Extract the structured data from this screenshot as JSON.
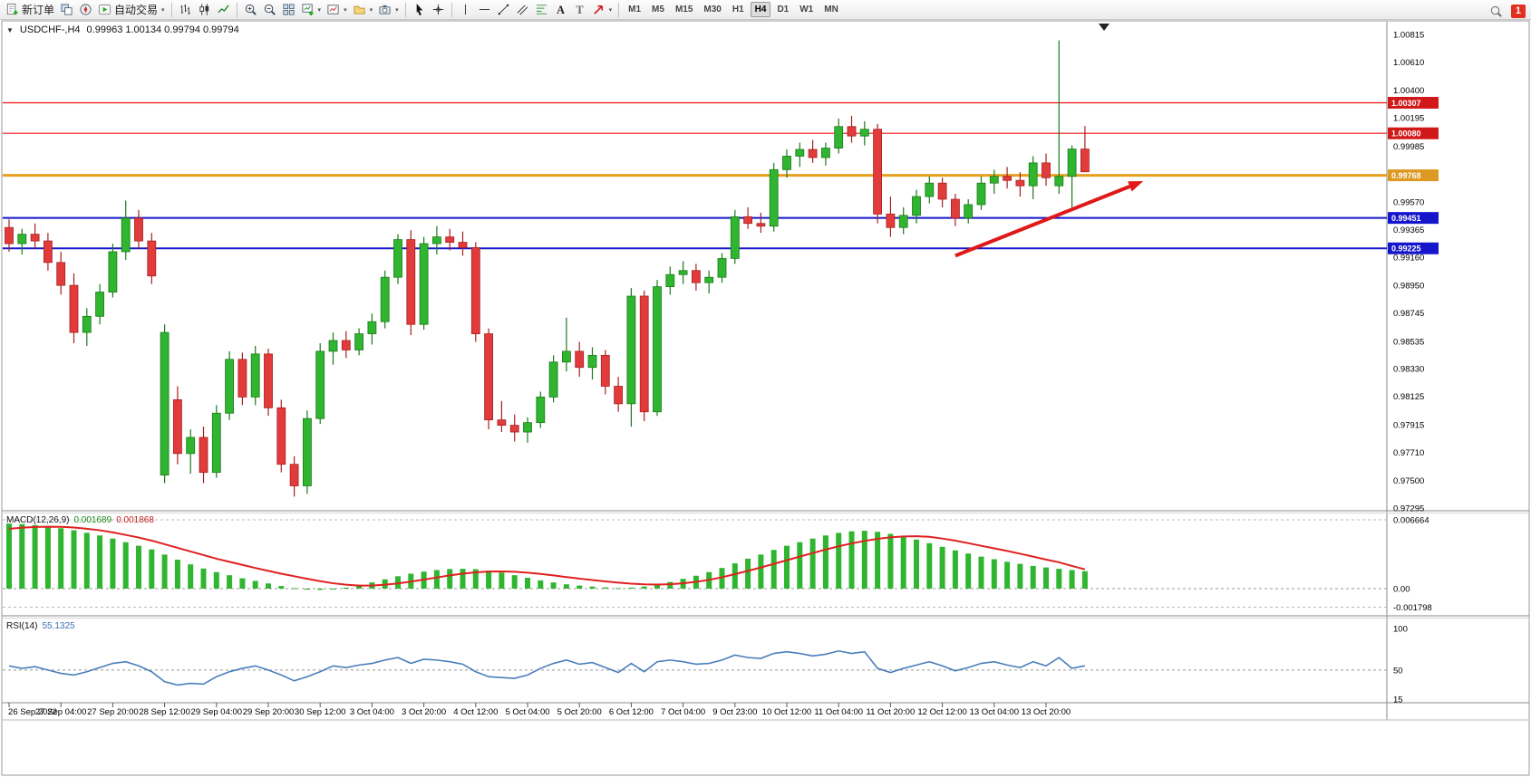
{
  "toolbar": {
    "new_order_label": "新订单",
    "autotrade_label": "自动交易",
    "notification_count": "1",
    "timeframes": [
      "M1",
      "M5",
      "M15",
      "M30",
      "H1",
      "H4",
      "D1",
      "W1",
      "MN"
    ],
    "active_timeframe": "H4",
    "items": [
      {
        "type": "button",
        "name": "new-order-button",
        "icon": "new-order-icon",
        "label_key": "new_order_label"
      },
      {
        "type": "button",
        "name": "data-window-button",
        "icon": "data-window-icon"
      },
      {
        "type": "button",
        "name": "navigator-button",
        "icon": "navigator-icon"
      },
      {
        "type": "button",
        "name": "autotrade-button",
        "icon": "autotrade-icon",
        "label_key": "autotrade_label",
        "dropdown": true
      },
      {
        "type": "sep"
      },
      {
        "type": "button",
        "name": "bar-chart-button",
        "icon": "bar-chart-icon"
      },
      {
        "type": "button",
        "name": "candlestick-button",
        "icon": "candlestick-icon"
      },
      {
        "type": "button",
        "name": "line-chart-button",
        "icon": "line-chart-icon"
      },
      {
        "type": "sep"
      },
      {
        "type": "button",
        "name": "zoom-in-button",
        "icon": "zoom-in-icon"
      },
      {
        "type": "button",
        "name": "zoom-out-button",
        "icon": "zoom-out-icon"
      },
      {
        "type": "button",
        "name": "tile-windows-button",
        "icon": "tile-windows-icon"
      },
      {
        "type": "button",
        "name": "indicators-button",
        "icon": "indicators-icon",
        "dropdown": true
      },
      {
        "type": "button",
        "name": "new-chart-button",
        "icon": "new-chart-icon",
        "dropdown": true
      },
      {
        "type": "button",
        "name": "profiles-button",
        "icon": "profiles-icon",
        "dropdown": true
      },
      {
        "type": "button",
        "name": "snapshot-button",
        "icon": "snapshot-icon",
        "dropdown": true
      },
      {
        "type": "sep"
      },
      {
        "type": "button",
        "name": "cursor-button",
        "icon": "cursor-icon"
      },
      {
        "type": "button",
        "name": "crosshair-button",
        "icon": "crosshair-icon"
      },
      {
        "type": "sep"
      },
      {
        "type": "button",
        "name": "vertical-line-button",
        "icon": "vline-icon"
      },
      {
        "type": "button",
        "name": "horizontal-line-button",
        "icon": "hline-icon"
      },
      {
        "type": "button",
        "name": "trendline-button",
        "icon": "trendline-icon"
      },
      {
        "type": "button",
        "name": "channel-button",
        "icon": "channel-icon"
      },
      {
        "type": "button",
        "name": "fibonacci-button",
        "icon": "fibonacci-icon"
      },
      {
        "type": "button",
        "name": "text-button",
        "icon": "text-icon"
      },
      {
        "type": "button",
        "name": "text-label-button",
        "icon": "textlabel-icon"
      },
      {
        "type": "button",
        "name": "arrows-button",
        "icon": "arrows-icon",
        "dropdown": true
      },
      {
        "type": "sep"
      }
    ]
  },
  "chart_header": {
    "symbol_period": "USDCHF-,H4",
    "ohlc_text": "0.99963 1.00134 0.99794 0.99794"
  },
  "macd_header": {
    "title": "MACD(12,26,9)",
    "value1": "0.001689",
    "value2": "0.001868"
  },
  "rsi_header": {
    "title": "RSI(14)",
    "value": "55.1325"
  },
  "chart_data": {
    "type": "candlestick",
    "symbol": "USDCHF",
    "timeframe": "H4",
    "price_range": {
      "max": 1.00815,
      "min": 0.97295
    },
    "price_axis_labels": [
      "1.00815",
      "1.00610",
      "1.00400",
      "1.00195",
      "0.99985",
      "0.99570",
      "0.99365",
      "0.99160",
      "0.98950",
      "0.98745",
      "0.98535",
      "0.98330",
      "0.98125",
      "0.97915",
      "0.97710",
      "0.97500",
      "0.97295"
    ],
    "colors": {
      "up": "#2FB52F",
      "up_border": "#1B7A1B",
      "down": "#E13B3B",
      "down_border": "#A81F1F",
      "resistance": "#EE1111",
      "support": "#1515CC",
      "key_level": "#E8A020",
      "macd_histogram": "#2FB52F",
      "macd_signal": "#E02020",
      "rsi_line": "#4A7EBB",
      "arrow": "#E01818"
    },
    "hlines": [
      {
        "name": "resistance-line-1",
        "price": 1.00307,
        "label": "1.00307",
        "color": "#EE1111",
        "badge": "#D01818",
        "width": 1.2
      },
      {
        "name": "resistance-line-2",
        "price": 1.0008,
        "label": "1.00080",
        "color": "#EE1111",
        "badge": "#D01818",
        "width": 1.2
      },
      {
        "name": "key-level-line",
        "price": 0.99768,
        "label": "0.99768",
        "color": "#E8A020",
        "badge": "#DD9922",
        "width": 3
      },
      {
        "name": "support-line-1",
        "price": 0.99451,
        "label": "0.99451",
        "color": "#1515CC",
        "badge": "#1515CC",
        "width": 2
      },
      {
        "name": "support-line-2",
        "price": 0.99225,
        "label": "0.99225",
        "color": "#1515CC",
        "badge": "#1515CC",
        "width": 2
      }
    ],
    "trend_arrow": {
      "from_bar": 73,
      "from_price": 0.9917,
      "to_bar": 87.5,
      "to_price": 0.99725,
      "color": "#E01818",
      "width": 4
    },
    "time_labels": [
      "26 Sep 2022",
      "27 Sep 04:00",
      "27 Sep 20:00",
      "28 Sep 12:00",
      "29 Sep 04:00",
      "29 Sep 20:00",
      "30 Sep 12:00",
      "3 Oct 04:00",
      "3 Oct 20:00",
      "4 Oct 12:00",
      "5 Oct 04:00",
      "5 Oct 20:00",
      "6 Oct 12:00",
      "7 Oct 04:00",
      "9 Oct 23:00",
      "10 Oct 12:00",
      "11 Oct 04:00",
      "11 Oct 20:00",
      "12 Oct 12:00",
      "13 Oct 04:00",
      "13 Oct 20:00"
    ],
    "candles_ohlc": [
      [
        0.9938,
        0.9944,
        0.992,
        0.9926
      ],
      [
        0.9926,
        0.9937,
        0.9918,
        0.9933
      ],
      [
        0.9933,
        0.9941,
        0.9922,
        0.9928
      ],
      [
        0.9928,
        0.9934,
        0.9906,
        0.9912
      ],
      [
        0.9912,
        0.992,
        0.9888,
        0.9895
      ],
      [
        0.9895,
        0.9904,
        0.9852,
        0.986
      ],
      [
        0.986,
        0.9878,
        0.985,
        0.9872
      ],
      [
        0.9872,
        0.9896,
        0.9866,
        0.989
      ],
      [
        0.989,
        0.9926,
        0.9886,
        0.992
      ],
      [
        0.992,
        0.9958,
        0.9914,
        0.9945
      ],
      [
        0.9945,
        0.9951,
        0.9922,
        0.9928
      ],
      [
        0.9928,
        0.9934,
        0.9896,
        0.9902
      ],
      [
        0.9754,
        0.9866,
        0.9748,
        0.986
      ],
      [
        0.981,
        0.982,
        0.9762,
        0.977
      ],
      [
        0.977,
        0.9788,
        0.9755,
        0.9782
      ],
      [
        0.9782,
        0.979,
        0.9748,
        0.9756
      ],
      [
        0.9756,
        0.9806,
        0.9752,
        0.98
      ],
      [
        0.98,
        0.9846,
        0.9795,
        0.984
      ],
      [
        0.984,
        0.9845,
        0.9806,
        0.9812
      ],
      [
        0.9812,
        0.985,
        0.9806,
        0.9844
      ],
      [
        0.9844,
        0.9848,
        0.9798,
        0.9804
      ],
      [
        0.9804,
        0.981,
        0.9756,
        0.9762
      ],
      [
        0.9762,
        0.9768,
        0.9738,
        0.9746
      ],
      [
        0.9746,
        0.9802,
        0.974,
        0.9796
      ],
      [
        0.9796,
        0.9852,
        0.9792,
        0.9846
      ],
      [
        0.9846,
        0.986,
        0.9836,
        0.9854
      ],
      [
        0.9854,
        0.9861,
        0.9841,
        0.9847
      ],
      [
        0.9847,
        0.9863,
        0.9843,
        0.9859
      ],
      [
        0.9859,
        0.9874,
        0.9851,
        0.9868
      ],
      [
        0.9868,
        0.9906,
        0.9863,
        0.9901
      ],
      [
        0.9901,
        0.9933,
        0.9896,
        0.9929
      ],
      [
        0.9929,
        0.9936,
        0.9858,
        0.9866
      ],
      [
        0.9866,
        0.9931,
        0.9862,
        0.9926
      ],
      [
        0.9926,
        0.9939,
        0.9918,
        0.9931
      ],
      [
        0.9931,
        0.9937,
        0.9921,
        0.9927
      ],
      [
        0.9927,
        0.9935,
        0.9917,
        0.9923
      ],
      [
        0.9923,
        0.9927,
        0.9853,
        0.9859
      ],
      [
        0.9859,
        0.9863,
        0.9788,
        0.9795
      ],
      [
        0.9795,
        0.9809,
        0.9786,
        0.9791
      ],
      [
        0.9791,
        0.9799,
        0.9779,
        0.9786
      ],
      [
        0.9786,
        0.9797,
        0.9778,
        0.9793
      ],
      [
        0.9793,
        0.9816,
        0.9789,
        0.9812
      ],
      [
        0.9812,
        0.9843,
        0.9808,
        0.9838
      ],
      [
        0.9838,
        0.9871,
        0.9831,
        0.9846
      ],
      [
        0.9846,
        0.9853,
        0.9827,
        0.9834
      ],
      [
        0.9834,
        0.9849,
        0.9825,
        0.9843
      ],
      [
        0.9843,
        0.9847,
        0.9814,
        0.982
      ],
      [
        0.982,
        0.9827,
        0.9801,
        0.9807
      ],
      [
        0.9807,
        0.9893,
        0.979,
        0.9887
      ],
      [
        0.9887,
        0.9891,
        0.9794,
        0.9801
      ],
      [
        0.9801,
        0.9899,
        0.9798,
        0.9894
      ],
      [
        0.9894,
        0.9909,
        0.9888,
        0.9903
      ],
      [
        0.9903,
        0.9913,
        0.9896,
        0.9906
      ],
      [
        0.9906,
        0.9911,
        0.9891,
        0.9897
      ],
      [
        0.9897,
        0.9906,
        0.9889,
        0.9901
      ],
      [
        0.9901,
        0.9919,
        0.9897,
        0.9915
      ],
      [
        0.9915,
        0.9951,
        0.9911,
        0.9946
      ],
      [
        0.9946,
        0.9953,
        0.9937,
        0.9941
      ],
      [
        0.9941,
        0.9949,
        0.9934,
        0.9939
      ],
      [
        0.9939,
        0.9986,
        0.9935,
        0.9981
      ],
      [
        0.9981,
        0.9996,
        0.9975,
        0.9991
      ],
      [
        0.9991,
        1.0001,
        0.9983,
        0.9996
      ],
      [
        0.9996,
        1.0003,
        0.9986,
        0.999
      ],
      [
        0.999,
        1.0001,
        0.9984,
        0.9997
      ],
      [
        0.9997,
        1.0019,
        0.9993,
        1.0013
      ],
      [
        1.0013,
        1.0021,
        1.0001,
        1.0006
      ],
      [
        1.0006,
        1.0017,
        0.9999,
        1.0011
      ],
      [
        1.0011,
        1.0015,
        0.9941,
        0.9948
      ],
      [
        0.9948,
        0.9961,
        0.9931,
        0.9938
      ],
      [
        0.9938,
        0.9953,
        0.9933,
        0.9947
      ],
      [
        0.9947,
        0.9966,
        0.9941,
        0.9961
      ],
      [
        0.9961,
        0.9976,
        0.9956,
        0.9971
      ],
      [
        0.9971,
        0.9975,
        0.9953,
        0.9959
      ],
      [
        0.9959,
        0.9963,
        0.9939,
        0.9945
      ],
      [
        0.9945,
        0.9959,
        0.9941,
        0.9955
      ],
      [
        0.9955,
        0.9976,
        0.9951,
        0.9971
      ],
      [
        0.9971,
        0.9981,
        0.9963,
        0.9976
      ],
      [
        0.9976,
        0.9983,
        0.9967,
        0.9973
      ],
      [
        0.9973,
        0.9979,
        0.9961,
        0.9969
      ],
      [
        0.9969,
        0.9991,
        0.9959,
        0.9986
      ],
      [
        0.9986,
        0.9993,
        0.9969,
        0.9975
      ],
      [
        0.9969,
        1.0077,
        0.9963,
        0.9976
      ],
      [
        0.9976,
        0.9999,
        0.9953,
        0.99963
      ],
      [
        0.99963,
        1.00134,
        0.99794,
        0.99794
      ]
    ],
    "indicators": {
      "macd": {
        "axis_labels": [
          "0.006664",
          "0.00",
          "-0.001798"
        ],
        "max": 0.006664,
        "min": -0.001798,
        "histogram": [
          0.0063,
          0.00625,
          0.00615,
          0.006,
          0.00585,
          0.00565,
          0.0054,
          0.00515,
          0.00485,
          0.0045,
          0.00415,
          0.0038,
          0.0033,
          0.0028,
          0.00235,
          0.00195,
          0.0016,
          0.0013,
          0.001,
          0.00075,
          0.0005,
          0.00025,
          5e-05,
          -0.0001,
          -0.00012,
          -5e-05,
          0.0001,
          0.0003,
          0.0006,
          0.0009,
          0.0012,
          0.00145,
          0.00165,
          0.0018,
          0.0019,
          0.00192,
          0.00188,
          0.00175,
          0.00155,
          0.0013,
          0.00105,
          0.0008,
          0.0006,
          0.00042,
          0.0003,
          0.0002,
          0.00012,
          5e-05,
          0.0001,
          0.0002,
          0.0004,
          0.00065,
          0.00095,
          0.00125,
          0.0016,
          0.002,
          0.00245,
          0.0029,
          0.0033,
          0.00375,
          0.00415,
          0.0045,
          0.00485,
          0.00515,
          0.0054,
          0.00555,
          0.0056,
          0.0055,
          0.0053,
          0.00505,
          0.00475,
          0.0044,
          0.00405,
          0.0037,
          0.0034,
          0.0031,
          0.00285,
          0.0026,
          0.0024,
          0.0022,
          0.00205,
          0.00192,
          0.0018,
          0.001689
        ],
        "signal": [
          0.0058,
          0.0059,
          0.00597,
          0.006,
          0.00598,
          0.00592,
          0.0058,
          0.00565,
          0.00545,
          0.0052,
          0.00495,
          0.00465,
          0.0043,
          0.00395,
          0.0036,
          0.00325,
          0.0029,
          0.0026,
          0.0023,
          0.002,
          0.00172,
          0.00145,
          0.0012,
          0.00095,
          0.00072,
          0.00052,
          0.00038,
          0.0003,
          0.0003,
          0.00038,
          0.0005,
          0.00068,
          0.00088,
          0.00108,
          0.00128,
          0.00145,
          0.00158,
          0.00165,
          0.00167,
          0.00163,
          0.00155,
          0.00142,
          0.00128,
          0.00112,
          0.00097,
          0.00083,
          0.0007,
          0.00058,
          0.00048,
          0.00042,
          0.0004,
          0.00043,
          0.00052,
          0.00066,
          0.00085,
          0.0011,
          0.0014,
          0.00172,
          0.00205,
          0.0024,
          0.00275,
          0.0031,
          0.00345,
          0.00378,
          0.0041,
          0.00438,
          0.00462,
          0.00482,
          0.00497,
          0.00505,
          0.00507,
          0.00502,
          0.00485,
          0.00465,
          0.0044,
          0.00415,
          0.0039,
          0.00365,
          0.00338,
          0.0031,
          0.00282,
          0.00255,
          0.0022,
          0.001868
        ]
      },
      "rsi": {
        "axis_labels": [
          "100",
          "50",
          "15"
        ],
        "max": 100,
        "min": 15,
        "level": 50,
        "values": [
          55,
          52,
          54,
          50,
          46,
          44,
          48,
          53,
          58,
          60,
          55,
          48,
          36,
          32,
          34,
          33,
          42,
          48,
          52,
          55,
          50,
          44,
          37,
          42,
          48,
          55,
          53,
          56,
          58,
          62,
          65,
          58,
          63,
          62,
          60,
          57,
          48,
          42,
          41,
          40,
          44,
          52,
          58,
          62,
          57,
          59,
          53,
          47,
          58,
          48,
          60,
          62,
          60,
          57,
          58,
          62,
          68,
          65,
          64,
          70,
          72,
          70,
          67,
          69,
          73,
          70,
          72,
          52,
          47,
          52,
          56,
          60,
          55,
          49,
          53,
          58,
          60,
          56,
          53,
          60,
          55,
          65,
          52,
          55.13
        ]
      }
    }
  }
}
